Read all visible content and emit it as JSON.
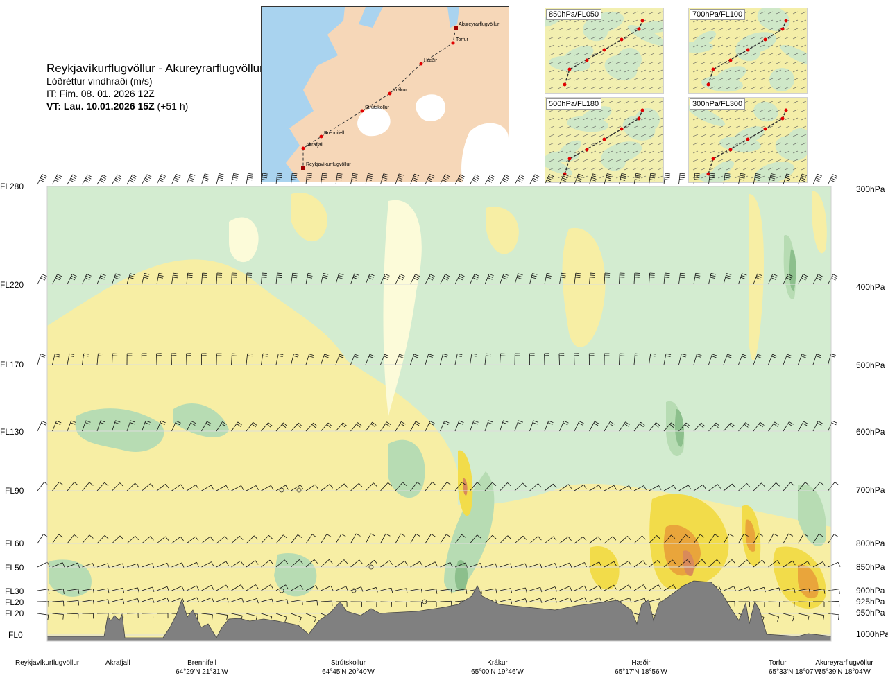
{
  "header": {
    "route": "Reykjavíkurflugvöllur - Akureyrarflugvöllur",
    "quantity": "Lóðréttur vindhraði (m/s)",
    "issue_time": "IT: Fim. 08. 01. 2026 12Z",
    "valid_time_bold": "VT: Lau. 10.01.2026 15Z",
    "valid_offset": " (+51 h)"
  },
  "map": {
    "waypoints": [
      "Akureyrarflugvöllur",
      "Torfur",
      "Hæðir",
      "Krákur",
      "Strútskollur",
      "Brennifell",
      "Akrafjall",
      "Reykjavíkurflugvöllur"
    ],
    "land_color": "#f6d7b8",
    "sea_color": "#a9d3ef",
    "ice_color": "#ffffff",
    "route_color": "#333333",
    "waypoint_color": "#e00000"
  },
  "level_maps": [
    {
      "label": "850hPa/FL050"
    },
    {
      "label": "700hPa/FL100"
    },
    {
      "label": "500hPa/FL180"
    },
    {
      "label": "300hPa/FL300"
    }
  ],
  "chart_data": {
    "type": "heatmap",
    "variable": "Lóðréttur vindhraði (m/s)",
    "x_axis": "distance along route",
    "levels": [
      {
        "fl": "FL280",
        "hpa": "300hPa"
      },
      {
        "fl": "FL220",
        "hpa": "400hPa"
      },
      {
        "fl": "FL170",
        "hpa": "500hPa"
      },
      {
        "fl": "FL130",
        "hpa": "600hPa"
      },
      {
        "fl": "FL90",
        "hpa": "700hPa"
      },
      {
        "fl": "FL60",
        "hpa": "800hPa"
      },
      {
        "fl": "FL50",
        "hpa": "850hPa"
      },
      {
        "fl": "FL30",
        "hpa": "900hPa"
      },
      {
        "fl": "FL20",
        "hpa": "925hPa"
      },
      {
        "fl": "FL20",
        "hpa": "950hPa"
      },
      {
        "fl": "FL0",
        "hpa": "1000hPa"
      }
    ],
    "locations": [
      {
        "name": "Reykjavíkurflugvöllur",
        "coord": "",
        "fraction": 0.0
      },
      {
        "name": "Akrafjall",
        "coord": "",
        "fraction": 0.09
      },
      {
        "name": "Brennifell",
        "coord": "64°29'N 21°31'W",
        "fraction": 0.19
      },
      {
        "name": "Strútskollur",
        "coord": "64°45'N 20°40'W",
        "fraction": 0.38
      },
      {
        "name": "Krákur",
        "coord": "65°00'N 19°46'W",
        "fraction": 0.55
      },
      {
        "name": "Hæðir",
        "coord": "65°17'N 18°56'W",
        "fraction": 0.73
      },
      {
        "name": "Torfur",
        "coord": "65°33'N 18°07'W",
        "fraction": 0.93
      },
      {
        "name": "Akureyrarflugvöllur",
        "coord": "65°39'N 18°04'W",
        "fraction": 1.0
      }
    ],
    "color_scale": [
      {
        "class": "strong-down",
        "color": "#8cbf8c"
      },
      {
        "class": "moderate-down",
        "color": "#b7dcb3"
      },
      {
        "class": "weak-down",
        "color": "#d3ecd0"
      },
      {
        "class": "near-zero",
        "color": "#fcfbd9"
      },
      {
        "class": "weak-up",
        "color": "#f7eea4"
      },
      {
        "class": "moderate-up",
        "color": "#f2dc4a"
      },
      {
        "class": "strong-up",
        "color": "#e9a53b"
      },
      {
        "class": "very-strong-up",
        "color": "#d98a5a"
      }
    ],
    "terrain_color": "#808080",
    "grid": true
  }
}
